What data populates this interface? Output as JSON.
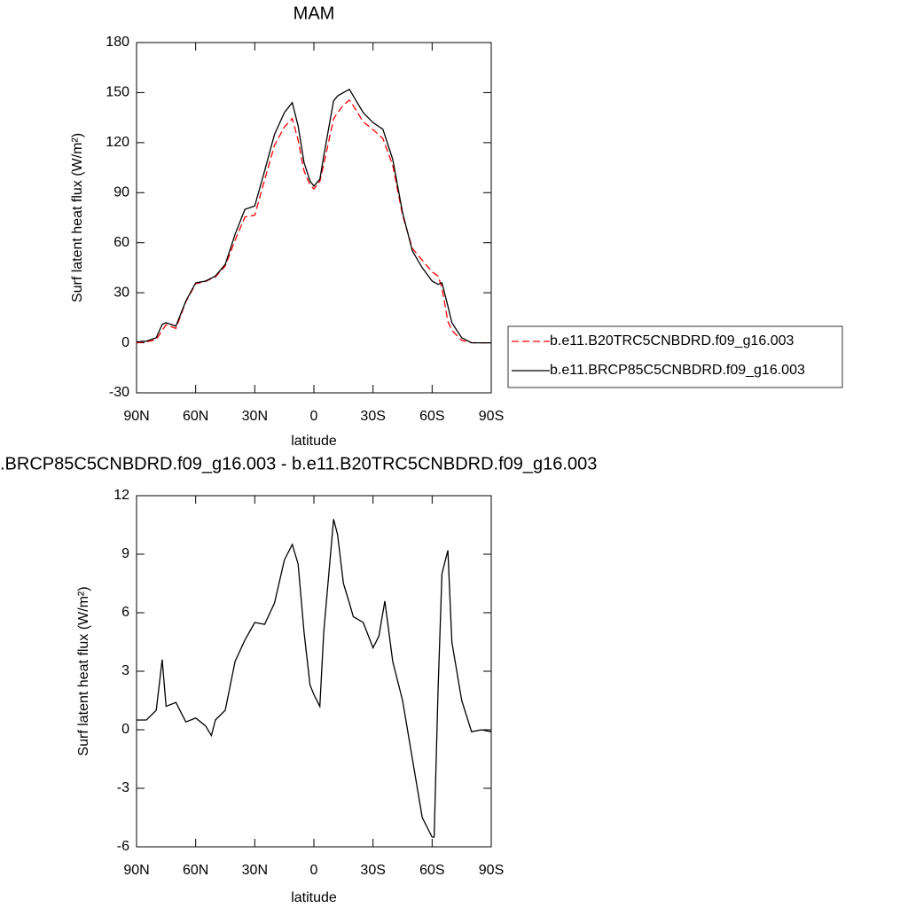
{
  "chart_data": [
    {
      "type": "line",
      "title": "MAM",
      "xlabel": "latitude",
      "ylabel": "Surf latent heat flux (W/m²)",
      "x": [
        90,
        85,
        80,
        77,
        75,
        70,
        65,
        60,
        55,
        50,
        45,
        40,
        35,
        30,
        25,
        20,
        15,
        11,
        8,
        5,
        2,
        0,
        -3,
        -5,
        -10,
        -12,
        -15,
        -18,
        -20,
        -25,
        -30,
        -35,
        -40,
        -45,
        -50,
        -55,
        -60,
        -63,
        -65,
        -68,
        -70,
        -75,
        -80,
        -85,
        -90
      ],
      "series": [
        {
          "name": "b.e11.B20TRC5CNBDRD.f09_g16.003",
          "color": "#ff0000",
          "dashed": true,
          "values": [
            0,
            0.5,
            2,
            7.4,
            10.8,
            8.6,
            24.6,
            35.4,
            36.8,
            39.5,
            46,
            61.5,
            75.4,
            76.5,
            97.6,
            118.5,
            129.3,
            134.5,
            121.5,
            103,
            94.7,
            92.2,
            96.8,
            107,
            134.2,
            138,
            142.5,
            145.5,
            142.2,
            132.5,
            127.8,
            122.5,
            106.5,
            76.5,
            56.5,
            49.5,
            42.5,
            40,
            33,
            12.8,
            7.5,
            1.5,
            0.1,
            0,
            0.1
          ]
        },
        {
          "name": "b.e11.BRCP85C5CNBDRD.f09_g16.003",
          "color": "#000000",
          "dashed": false,
          "values": [
            0.5,
            1,
            3,
            11,
            12,
            10,
            25,
            36,
            37,
            40,
            47,
            65,
            80,
            82,
            103,
            125,
            138,
            144,
            130,
            108,
            97,
            94,
            98,
            112,
            145,
            148,
            150,
            152,
            148,
            138,
            132,
            128,
            110,
            78,
            55,
            45,
            37,
            35,
            36,
            22,
            12,
            3,
            0,
            0,
            0
          ]
        }
      ],
      "xlim": [
        90,
        -90
      ],
      "xticks": [
        {
          "value": 90,
          "label": "90N"
        },
        {
          "value": 60,
          "label": "60N"
        },
        {
          "value": 30,
          "label": "30N"
        },
        0,
        {
          "value": -30,
          "label": "30S"
        },
        {
          "value": -60,
          "label": "60S"
        },
        {
          "value": -90,
          "label": "90S"
        }
      ],
      "ylim": [
        -30,
        180
      ],
      "yticks": [
        -30,
        0,
        30,
        60,
        90,
        120,
        150,
        180
      ],
      "legend_position": "right"
    },
    {
      "type": "line",
      "title": ".BRCP85C5CNBDRD.f09_g16.003 - b.e11.B20TRC5CNBDRD.f09_g16.003",
      "xlabel": "latitude",
      "ylabel": "Surf latent heat flux (W/m²)",
      "x": [
        90,
        85,
        80,
        77,
        75,
        70,
        65,
        60,
        55,
        52,
        50,
        45,
        40,
        35,
        30,
        25,
        20,
        15,
        11,
        8,
        5,
        2,
        0,
        -3,
        -5,
        -10,
        -12,
        -15,
        -18,
        -20,
        -25,
        -30,
        -33,
        -36,
        -40,
        -45,
        -50,
        -55,
        -60,
        -61,
        -63,
        -65,
        -68,
        -70,
        -75,
        -80,
        -85,
        -90
      ],
      "color": "#000000",
      "values": [
        0.5,
        0.5,
        1.0,
        3.6,
        1.2,
        1.4,
        0.4,
        0.6,
        0.2,
        -0.3,
        0.5,
        1.0,
        3.5,
        4.6,
        5.5,
        5.4,
        6.5,
        8.7,
        9.5,
        8.5,
        5,
        2.3,
        1.8,
        1.2,
        5,
        10.8,
        10,
        7.5,
        6.5,
        5.8,
        5.5,
        4.2,
        4.8,
        6.6,
        3.5,
        1.5,
        -1.5,
        -4.5,
        -5.5,
        -5.5,
        2,
        8,
        9.2,
        4.5,
        1.5,
        -0.1,
        0,
        -0.1
      ],
      "xlim": [
        90,
        -90
      ],
      "xticks": [
        {
          "value": 90,
          "label": "90N"
        },
        {
          "value": 60,
          "label": "60N"
        },
        {
          "value": 30,
          "label": "30N"
        },
        0,
        {
          "value": -30,
          "label": "30S"
        },
        {
          "value": -60,
          "label": "60S"
        },
        {
          "value": -90,
          "label": "90S"
        }
      ],
      "ylim": [
        -6,
        12
      ],
      "yticks": [
        -6,
        -3,
        0,
        3,
        6,
        9,
        12
      ]
    }
  ]
}
